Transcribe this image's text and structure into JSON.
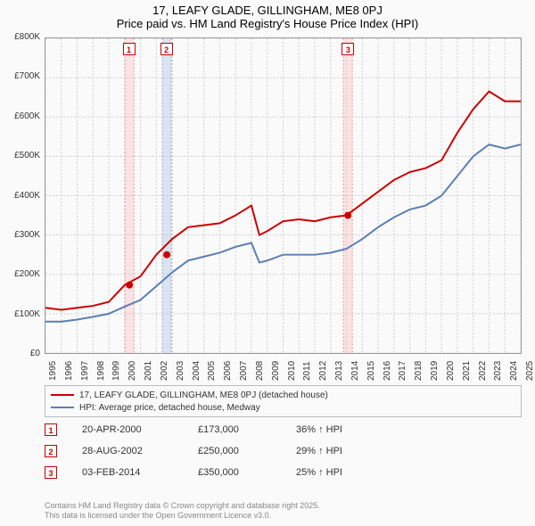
{
  "title": {
    "line1": "17, LEAFY GLADE, GILLINGHAM, ME8 0PJ",
    "line2": "Price paid vs. HM Land Registry's House Price Index (HPI)"
  },
  "chart": {
    "type": "line",
    "background_color": "#fafafa",
    "grid_color": "#cccccc",
    "axis_color": "#999999",
    "x": {
      "min": 1995,
      "max": 2025,
      "ticks": [
        1995,
        1996,
        1997,
        1998,
        1999,
        2000,
        2001,
        2002,
        2003,
        2004,
        2005,
        2006,
        2007,
        2008,
        2009,
        2010,
        2011,
        2012,
        2013,
        2014,
        2015,
        2016,
        2017,
        2018,
        2019,
        2020,
        2021,
        2022,
        2023,
        2024,
        2025
      ]
    },
    "y": {
      "min": 0,
      "max": 800000,
      "ticks": [
        0,
        100000,
        200000,
        300000,
        400000,
        500000,
        600000,
        700000,
        800000
      ],
      "tick_labels": [
        "£0",
        "£100K",
        "£200K",
        "£300K",
        "£400K",
        "£500K",
        "£600K",
        "£700K",
        "£800K"
      ]
    },
    "series": [
      {
        "name": "17, LEAFY GLADE, GILLINGHAM, ME8 0PJ (detached house)",
        "color": "#cc0000",
        "line_width": 2,
        "data": [
          [
            1995,
            115000
          ],
          [
            1996,
            110000
          ],
          [
            1997,
            115000
          ],
          [
            1998,
            120000
          ],
          [
            1999,
            130000
          ],
          [
            2000,
            173000
          ],
          [
            2001,
            195000
          ],
          [
            2002,
            250000
          ],
          [
            2003,
            290000
          ],
          [
            2004,
            320000
          ],
          [
            2005,
            325000
          ],
          [
            2006,
            330000
          ],
          [
            2007,
            350000
          ],
          [
            2008,
            375000
          ],
          [
            2008.5,
            300000
          ],
          [
            2009,
            310000
          ],
          [
            2010,
            335000
          ],
          [
            2011,
            340000
          ],
          [
            2012,
            335000
          ],
          [
            2013,
            345000
          ],
          [
            2014,
            350000
          ],
          [
            2015,
            380000
          ],
          [
            2016,
            410000
          ],
          [
            2017,
            440000
          ],
          [
            2018,
            460000
          ],
          [
            2019,
            470000
          ],
          [
            2020,
            490000
          ],
          [
            2021,
            560000
          ],
          [
            2022,
            620000
          ],
          [
            2023,
            665000
          ],
          [
            2024,
            640000
          ],
          [
            2025,
            640000
          ]
        ]
      },
      {
        "name": "HPI: Average price, detached house, Medway",
        "color": "#5b7fb3",
        "line_width": 2,
        "data": [
          [
            1995,
            80000
          ],
          [
            1996,
            80000
          ],
          [
            1997,
            85000
          ],
          [
            1998,
            92000
          ],
          [
            1999,
            100000
          ],
          [
            2000,
            118000
          ],
          [
            2001,
            135000
          ],
          [
            2002,
            170000
          ],
          [
            2003,
            205000
          ],
          [
            2004,
            235000
          ],
          [
            2005,
            245000
          ],
          [
            2006,
            255000
          ],
          [
            2007,
            270000
          ],
          [
            2008,
            280000
          ],
          [
            2008.5,
            230000
          ],
          [
            2009,
            235000
          ],
          [
            2010,
            250000
          ],
          [
            2011,
            250000
          ],
          [
            2012,
            250000
          ],
          [
            2013,
            255000
          ],
          [
            2014,
            265000
          ],
          [
            2015,
            290000
          ],
          [
            2016,
            320000
          ],
          [
            2017,
            345000
          ],
          [
            2018,
            365000
          ],
          [
            2019,
            375000
          ],
          [
            2020,
            400000
          ],
          [
            2021,
            450000
          ],
          [
            2022,
            500000
          ],
          [
            2023,
            530000
          ],
          [
            2024,
            520000
          ],
          [
            2025,
            530000
          ]
        ]
      }
    ],
    "sale_markers": [
      {
        "n": "1",
        "year": 2000.3,
        "price": 173000,
        "band_color": "pink"
      },
      {
        "n": "2",
        "year": 2002.66,
        "price": 250000,
        "band_color": "blue"
      },
      {
        "n": "3",
        "year": 2014.09,
        "price": 350000,
        "band_color": "pink"
      }
    ]
  },
  "legend": {
    "items": [
      {
        "color": "#cc0000",
        "label": "17, LEAFY GLADE, GILLINGHAM, ME8 0PJ (detached house)"
      },
      {
        "color": "#5b7fb3",
        "label": "HPI: Average price, detached house, Medway"
      }
    ]
  },
  "sales_table": {
    "rows": [
      {
        "n": "1",
        "date": "20-APR-2000",
        "price": "£173,000",
        "hpi": "36% ↑ HPI"
      },
      {
        "n": "2",
        "date": "28-AUG-2002",
        "price": "£250,000",
        "hpi": "29% ↑ HPI"
      },
      {
        "n": "3",
        "date": "03-FEB-2014",
        "price": "£350,000",
        "hpi": "25% ↑ HPI"
      }
    ]
  },
  "footer": {
    "line1": "Contains HM Land Registry data © Crown copyright and database right 2025.",
    "line2": "This data is licensed under the Open Government Licence v3.0."
  }
}
